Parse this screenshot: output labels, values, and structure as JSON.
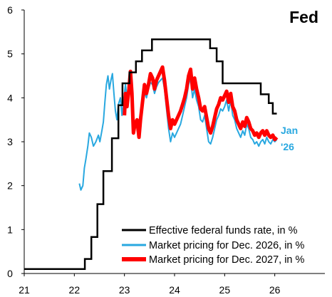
{
  "chart_data": {
    "type": "line",
    "title": "Fed",
    "xlabel": "",
    "ylabel": "",
    "xlim": [
      2021,
      2027
    ],
    "ylim": [
      0,
      6
    ],
    "x_ticks": [
      2021,
      2022,
      2023,
      2024,
      2025,
      2026
    ],
    "x_tick_labels": [
      "21",
      "22",
      "23",
      "24",
      "25",
      "26"
    ],
    "y_ticks": [
      0,
      1,
      2,
      3,
      4,
      5,
      6
    ],
    "y_tick_labels": [
      "0",
      "1",
      "2",
      "3",
      "4",
      "5",
      "6"
    ],
    "grid": false,
    "legend_position": "bottom-right",
    "annotation": {
      "line1": "Jan",
      "line2": "'26",
      "color": "#29a8e0"
    },
    "series": [
      {
        "name": "Effective federal funds rate, in %",
        "color": "#000000",
        "step": true,
        "points": [
          [
            2021.0,
            0.1
          ],
          [
            2022.21,
            0.1
          ],
          [
            2022.21,
            0.33
          ],
          [
            2022.34,
            0.33
          ],
          [
            2022.34,
            0.83
          ],
          [
            2022.46,
            0.83
          ],
          [
            2022.46,
            1.58
          ],
          [
            2022.58,
            1.58
          ],
          [
            2022.58,
            2.33
          ],
          [
            2022.75,
            2.33
          ],
          [
            2022.75,
            3.08
          ],
          [
            2022.88,
            3.08
          ],
          [
            2022.88,
            3.83
          ],
          [
            2022.96,
            3.83
          ],
          [
            2022.96,
            4.33
          ],
          [
            2023.1,
            4.33
          ],
          [
            2023.1,
            4.58
          ],
          [
            2023.23,
            4.58
          ],
          [
            2023.23,
            4.83
          ],
          [
            2023.35,
            4.83
          ],
          [
            2023.35,
            5.08
          ],
          [
            2023.55,
            5.08
          ],
          [
            2023.55,
            5.33
          ],
          [
            2024.71,
            5.33
          ],
          [
            2024.71,
            5.13
          ],
          [
            2024.84,
            5.13
          ],
          [
            2024.84,
            4.83
          ],
          [
            2024.96,
            4.83
          ],
          [
            2024.96,
            4.33
          ],
          [
            2025.72,
            4.33
          ],
          [
            2025.72,
            4.08
          ],
          [
            2025.88,
            4.08
          ],
          [
            2025.88,
            3.88
          ],
          [
            2025.96,
            3.88
          ],
          [
            2025.96,
            3.64
          ],
          [
            2026.04,
            3.64
          ]
        ]
      },
      {
        "name": "Market pricing for Dec. 2026, in %",
        "color": "#29a8e0",
        "step": false,
        "points": [
          [
            2022.1,
            2.05
          ],
          [
            2022.13,
            1.9
          ],
          [
            2022.17,
            2.0
          ],
          [
            2022.2,
            2.4
          ],
          [
            2022.23,
            2.6
          ],
          [
            2022.27,
            2.9
          ],
          [
            2022.3,
            3.2
          ],
          [
            2022.34,
            3.1
          ],
          [
            2022.38,
            2.9
          ],
          [
            2022.43,
            3.0
          ],
          [
            2022.48,
            3.15
          ],
          [
            2022.51,
            3.0
          ],
          [
            2022.55,
            3.25
          ],
          [
            2022.58,
            3.45
          ],
          [
            2022.61,
            3.9
          ],
          [
            2022.64,
            4.3
          ],
          [
            2022.67,
            4.5
          ],
          [
            2022.7,
            4.2
          ],
          [
            2022.73,
            4.4
          ],
          [
            2022.76,
            4.55
          ],
          [
            2022.79,
            4.1
          ],
          [
            2022.82,
            3.7
          ],
          [
            2022.85,
            3.5
          ],
          [
            2022.88,
            3.85
          ],
          [
            2022.92,
            4.0
          ],
          [
            2022.95,
            3.6
          ],
          [
            2022.98,
            3.9
          ],
          [
            2023.02,
            4.3
          ],
          [
            2023.05,
            4.0
          ],
          [
            2023.09,
            4.25
          ],
          [
            2023.12,
            4.45
          ],
          [
            2023.15,
            3.9
          ],
          [
            2023.18,
            3.2
          ],
          [
            2023.21,
            3.35
          ],
          [
            2023.25,
            3.5
          ],
          [
            2023.29,
            3.2
          ],
          [
            2023.32,
            3.6
          ],
          [
            2023.36,
            3.95
          ],
          [
            2023.4,
            4.15
          ],
          [
            2023.44,
            4.0
          ],
          [
            2023.48,
            4.2
          ],
          [
            2023.52,
            4.35
          ],
          [
            2023.56,
            4.3
          ],
          [
            2023.6,
            4.1
          ],
          [
            2023.64,
            4.25
          ],
          [
            2023.68,
            4.35
          ],
          [
            2023.72,
            4.4
          ],
          [
            2023.76,
            4.45
          ],
          [
            2023.8,
            4.2
          ],
          [
            2023.84,
            3.75
          ],
          [
            2023.88,
            3.3
          ],
          [
            2023.92,
            3.0
          ],
          [
            2023.96,
            3.2
          ],
          [
            2024.0,
            3.1
          ],
          [
            2024.04,
            3.2
          ],
          [
            2024.08,
            3.3
          ],
          [
            2024.12,
            3.4
          ],
          [
            2024.16,
            3.6
          ],
          [
            2024.2,
            3.8
          ],
          [
            2024.24,
            4.0
          ],
          [
            2024.28,
            4.3
          ],
          [
            2024.32,
            4.45
          ],
          [
            2024.36,
            4.0
          ],
          [
            2024.4,
            4.2
          ],
          [
            2024.44,
            3.95
          ],
          [
            2024.48,
            3.8
          ],
          [
            2024.52,
            3.5
          ],
          [
            2024.56,
            3.45
          ],
          [
            2024.6,
            3.6
          ],
          [
            2024.64,
            3.3
          ],
          [
            2024.68,
            3.0
          ],
          [
            2024.72,
            2.95
          ],
          [
            2024.76,
            3.1
          ],
          [
            2024.8,
            3.3
          ],
          [
            2024.84,
            3.5
          ],
          [
            2024.88,
            3.6
          ],
          [
            2024.92,
            3.75
          ],
          [
            2024.96,
            3.7
          ],
          [
            2025.0,
            3.8
          ],
          [
            2025.04,
            3.95
          ],
          [
            2025.08,
            3.7
          ],
          [
            2025.12,
            3.95
          ],
          [
            2025.16,
            3.6
          ],
          [
            2025.2,
            3.5
          ],
          [
            2025.24,
            3.3
          ],
          [
            2025.28,
            3.2
          ],
          [
            2025.32,
            3.1
          ],
          [
            2025.36,
            3.25
          ],
          [
            2025.4,
            3.15
          ],
          [
            2025.44,
            3.4
          ],
          [
            2025.48,
            3.3
          ],
          [
            2025.52,
            3.1
          ],
          [
            2025.56,
            3.05
          ],
          [
            2025.6,
            2.95
          ],
          [
            2025.64,
            3.0
          ],
          [
            2025.68,
            2.9
          ],
          [
            2025.72,
            3.0
          ],
          [
            2025.76,
            3.05
          ],
          [
            2025.8,
            2.95
          ],
          [
            2025.84,
            3.1
          ],
          [
            2025.88,
            3.0
          ],
          [
            2025.92,
            2.95
          ],
          [
            2025.96,
            3.05
          ],
          [
            2026.0,
            3.0
          ],
          [
            2026.04,
            3.05
          ]
        ]
      },
      {
        "name": "Market pricing for Dec. 2027, in %",
        "color": "#ff0000",
        "step": false,
        "points": [
          [
            2023.0,
            3.6
          ],
          [
            2023.02,
            4.1
          ],
          [
            2023.05,
            3.8
          ],
          [
            2023.09,
            4.2
          ],
          [
            2023.12,
            4.6
          ],
          [
            2023.15,
            4.1
          ],
          [
            2023.18,
            3.2
          ],
          [
            2023.21,
            3.4
          ],
          [
            2023.25,
            3.5
          ],
          [
            2023.29,
            3.1
          ],
          [
            2023.32,
            3.5
          ],
          [
            2023.36,
            3.9
          ],
          [
            2023.4,
            4.3
          ],
          [
            2023.44,
            4.1
          ],
          [
            2023.48,
            4.3
          ],
          [
            2023.52,
            4.55
          ],
          [
            2023.56,
            4.45
          ],
          [
            2023.6,
            4.2
          ],
          [
            2023.64,
            4.4
          ],
          [
            2023.68,
            4.5
          ],
          [
            2023.72,
            4.6
          ],
          [
            2023.76,
            4.7
          ],
          [
            2023.8,
            4.4
          ],
          [
            2023.84,
            4.0
          ],
          [
            2023.88,
            3.6
          ],
          [
            2023.92,
            3.3
          ],
          [
            2023.96,
            3.5
          ],
          [
            2024.0,
            3.4
          ],
          [
            2024.04,
            3.5
          ],
          [
            2024.08,
            3.6
          ],
          [
            2024.12,
            3.7
          ],
          [
            2024.16,
            3.85
          ],
          [
            2024.2,
            4.0
          ],
          [
            2024.24,
            4.2
          ],
          [
            2024.28,
            4.5
          ],
          [
            2024.32,
            4.65
          ],
          [
            2024.36,
            4.2
          ],
          [
            2024.4,
            4.45
          ],
          [
            2024.44,
            4.2
          ],
          [
            2024.48,
            4.0
          ],
          [
            2024.52,
            3.75
          ],
          [
            2024.56,
            3.7
          ],
          [
            2024.6,
            3.8
          ],
          [
            2024.64,
            3.55
          ],
          [
            2024.68,
            3.3
          ],
          [
            2024.72,
            3.2
          ],
          [
            2024.76,
            3.35
          ],
          [
            2024.8,
            3.55
          ],
          [
            2024.84,
            3.75
          ],
          [
            2024.88,
            3.85
          ],
          [
            2024.92,
            4.0
          ],
          [
            2024.96,
            3.95
          ],
          [
            2025.0,
            4.05
          ],
          [
            2025.04,
            4.15
          ],
          [
            2025.08,
            3.9
          ],
          [
            2025.12,
            4.1
          ],
          [
            2025.16,
            3.8
          ],
          [
            2025.2,
            3.7
          ],
          [
            2025.24,
            3.5
          ],
          [
            2025.28,
            3.4
          ],
          [
            2025.32,
            3.3
          ],
          [
            2025.36,
            3.45
          ],
          [
            2025.4,
            3.35
          ],
          [
            2025.44,
            3.55
          ],
          [
            2025.48,
            3.45
          ],
          [
            2025.52,
            3.3
          ],
          [
            2025.56,
            3.25
          ],
          [
            2025.6,
            3.15
          ],
          [
            2025.64,
            3.2
          ],
          [
            2025.68,
            3.1
          ],
          [
            2025.72,
            3.2
          ],
          [
            2025.76,
            3.25
          ],
          [
            2025.8,
            3.15
          ],
          [
            2025.84,
            3.25
          ],
          [
            2025.88,
            3.15
          ],
          [
            2025.92,
            3.1
          ],
          [
            2025.96,
            3.15
          ],
          [
            2026.0,
            3.05
          ],
          [
            2026.04,
            3.1
          ]
        ]
      }
    ]
  }
}
